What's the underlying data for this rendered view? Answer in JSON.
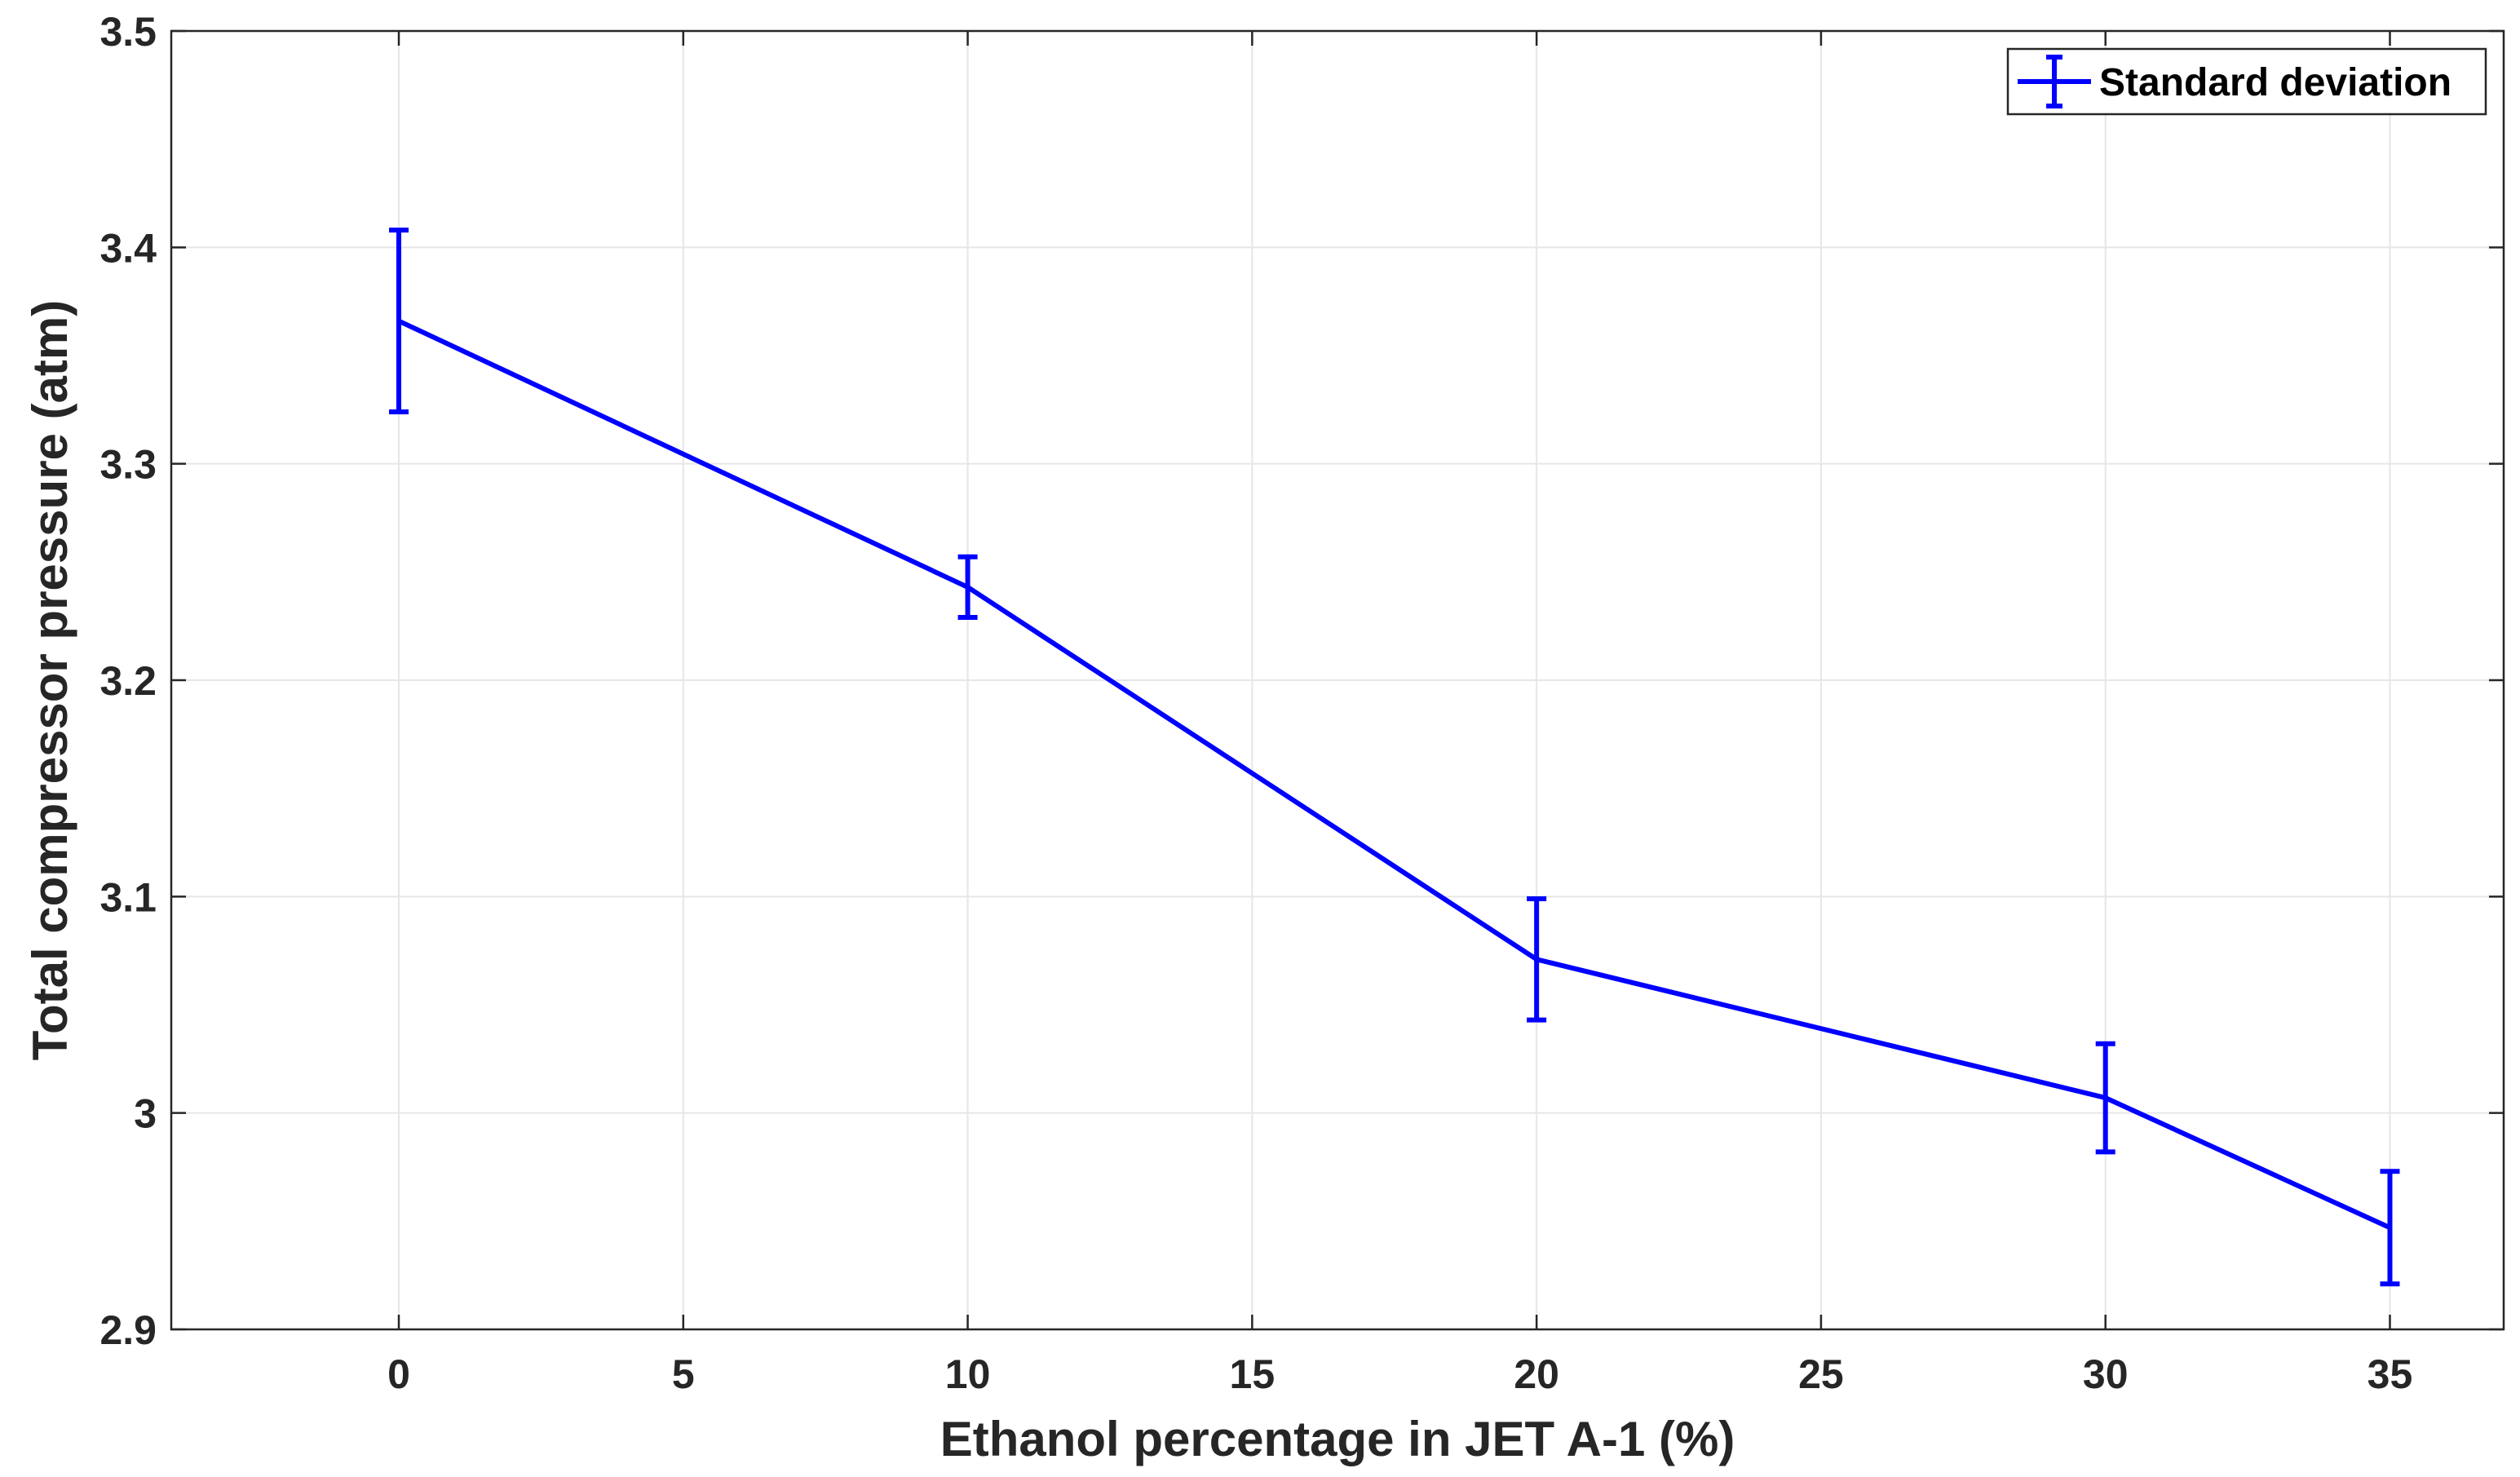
{
  "chart_data": {
    "type": "line",
    "title": "",
    "xlabel": "Ethanol percentage in JET A-1 (%)",
    "ylabel": "Total compressor pressure (atm)",
    "xlim": [
      -4,
      37
    ],
    "ylim": [
      2.9,
      3.5
    ],
    "xticks": [
      0,
      5,
      10,
      15,
      20,
      25,
      30,
      35
    ],
    "yticks": [
      2.9,
      3.0,
      3.1,
      3.2,
      3.3,
      3.4,
      3.5
    ],
    "xtick_labels": [
      "0",
      "5",
      "10",
      "15",
      "20",
      "25",
      "30",
      "35"
    ],
    "ytick_labels": [
      "2.9",
      "3",
      "3.1",
      "3.2",
      "3.3",
      "3.4",
      "3.5"
    ],
    "grid": true,
    "legend_position": "top-right",
    "series": [
      {
        "name": "Standard deviation",
        "color": "#0000ff",
        "x": [
          0,
          10,
          20,
          30,
          35
        ],
        "y": [
          3.366,
          3.243,
          3.071,
          3.007,
          2.947
        ],
        "error": [
          0.042,
          0.014,
          0.028,
          0.025,
          0.026
        ]
      }
    ]
  }
}
